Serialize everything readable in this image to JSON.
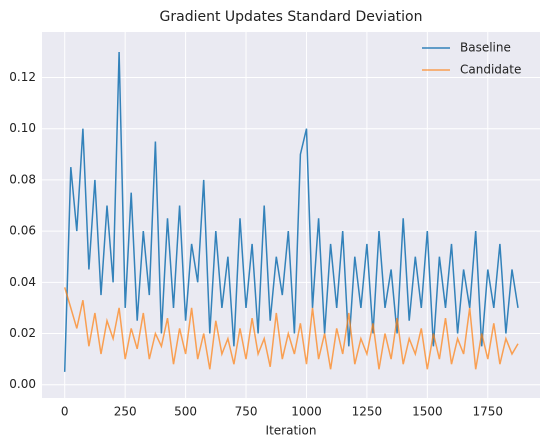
{
  "chart_data": {
    "type": "line",
    "title": "Gradient Updates Standard Deviation",
    "xlabel": "Iteration",
    "x": [
      0,
      25,
      50,
      75,
      100,
      125,
      150,
      175,
      200,
      225,
      250,
      275,
      300,
      325,
      350,
      375,
      400,
      425,
      450,
      475,
      500,
      525,
      550,
      575,
      600,
      625,
      650,
      675,
      700,
      725,
      750,
      775,
      800,
      825,
      850,
      875,
      900,
      925,
      950,
      975,
      1000,
      1025,
      1050,
      1075,
      1100,
      1125,
      1150,
      1175,
      1200,
      1225,
      1250,
      1275,
      1300,
      1325,
      1350,
      1375,
      1400,
      1425,
      1450,
      1475,
      1500,
      1525,
      1550,
      1575,
      1600,
      1625,
      1650,
      1675,
      1700,
      1725,
      1750,
      1775,
      1800,
      1825,
      1850,
      1875
    ],
    "series": [
      {
        "name": "Baseline",
        "color": "#1f77b4",
        "values": [
          0.005,
          0.085,
          0.06,
          0.1,
          0.045,
          0.08,
          0.035,
          0.07,
          0.04,
          0.13,
          0.03,
          0.075,
          0.025,
          0.06,
          0.035,
          0.095,
          0.02,
          0.065,
          0.03,
          0.07,
          0.025,
          0.055,
          0.04,
          0.08,
          0.02,
          0.06,
          0.03,
          0.05,
          0.015,
          0.065,
          0.03,
          0.055,
          0.02,
          0.07,
          0.025,
          0.05,
          0.035,
          0.06,
          0.02,
          0.09,
          0.1,
          0.03,
          0.065,
          0.02,
          0.055,
          0.03,
          0.06,
          0.015,
          0.05,
          0.03,
          0.055,
          0.02,
          0.06,
          0.03,
          0.045,
          0.02,
          0.065,
          0.025,
          0.05,
          0.03,
          0.06,
          0.015,
          0.05,
          0.03,
          0.055,
          0.02,
          0.045,
          0.03,
          0.06,
          0.015,
          0.045,
          0.03,
          0.055,
          0.02,
          0.045,
          0.03
        ]
      },
      {
        "name": "Candidate",
        "color": "#ff7f0e",
        "values": [
          0.038,
          0.03,
          0.022,
          0.033,
          0.015,
          0.028,
          0.012,
          0.025,
          0.018,
          0.03,
          0.01,
          0.022,
          0.014,
          0.028,
          0.01,
          0.02,
          0.015,
          0.026,
          0.008,
          0.022,
          0.012,
          0.03,
          0.01,
          0.02,
          0.006,
          0.025,
          0.012,
          0.018,
          0.008,
          0.022,
          0.01,
          0.026,
          0.012,
          0.018,
          0.007,
          0.028,
          0.01,
          0.02,
          0.012,
          0.024,
          0.008,
          0.03,
          0.01,
          0.02,
          0.006,
          0.022,
          0.012,
          0.028,
          0.008,
          0.018,
          0.012,
          0.024,
          0.006,
          0.02,
          0.01,
          0.026,
          0.008,
          0.018,
          0.012,
          0.022,
          0.006,
          0.02,
          0.01,
          0.026,
          0.008,
          0.018,
          0.012,
          0.03,
          0.006,
          0.02,
          0.01,
          0.024,
          0.008,
          0.018,
          0.012,
          0.016
        ]
      }
    ],
    "xlim": [
      -94,
      1966
    ],
    "xticks": [
      0,
      250,
      500,
      750,
      1000,
      1250,
      1500,
      1750
    ],
    "ylim": [
      -0.0052,
      0.1378
    ],
    "yticks": [
      {
        "value": 0,
        "label": "0.00"
      },
      0.02,
      0.04,
      0.06,
      0.08,
      {
        "value": 0.1,
        "label": "0.10"
      },
      0.12
    ],
    "grid": true,
    "legend": "upper right"
  }
}
